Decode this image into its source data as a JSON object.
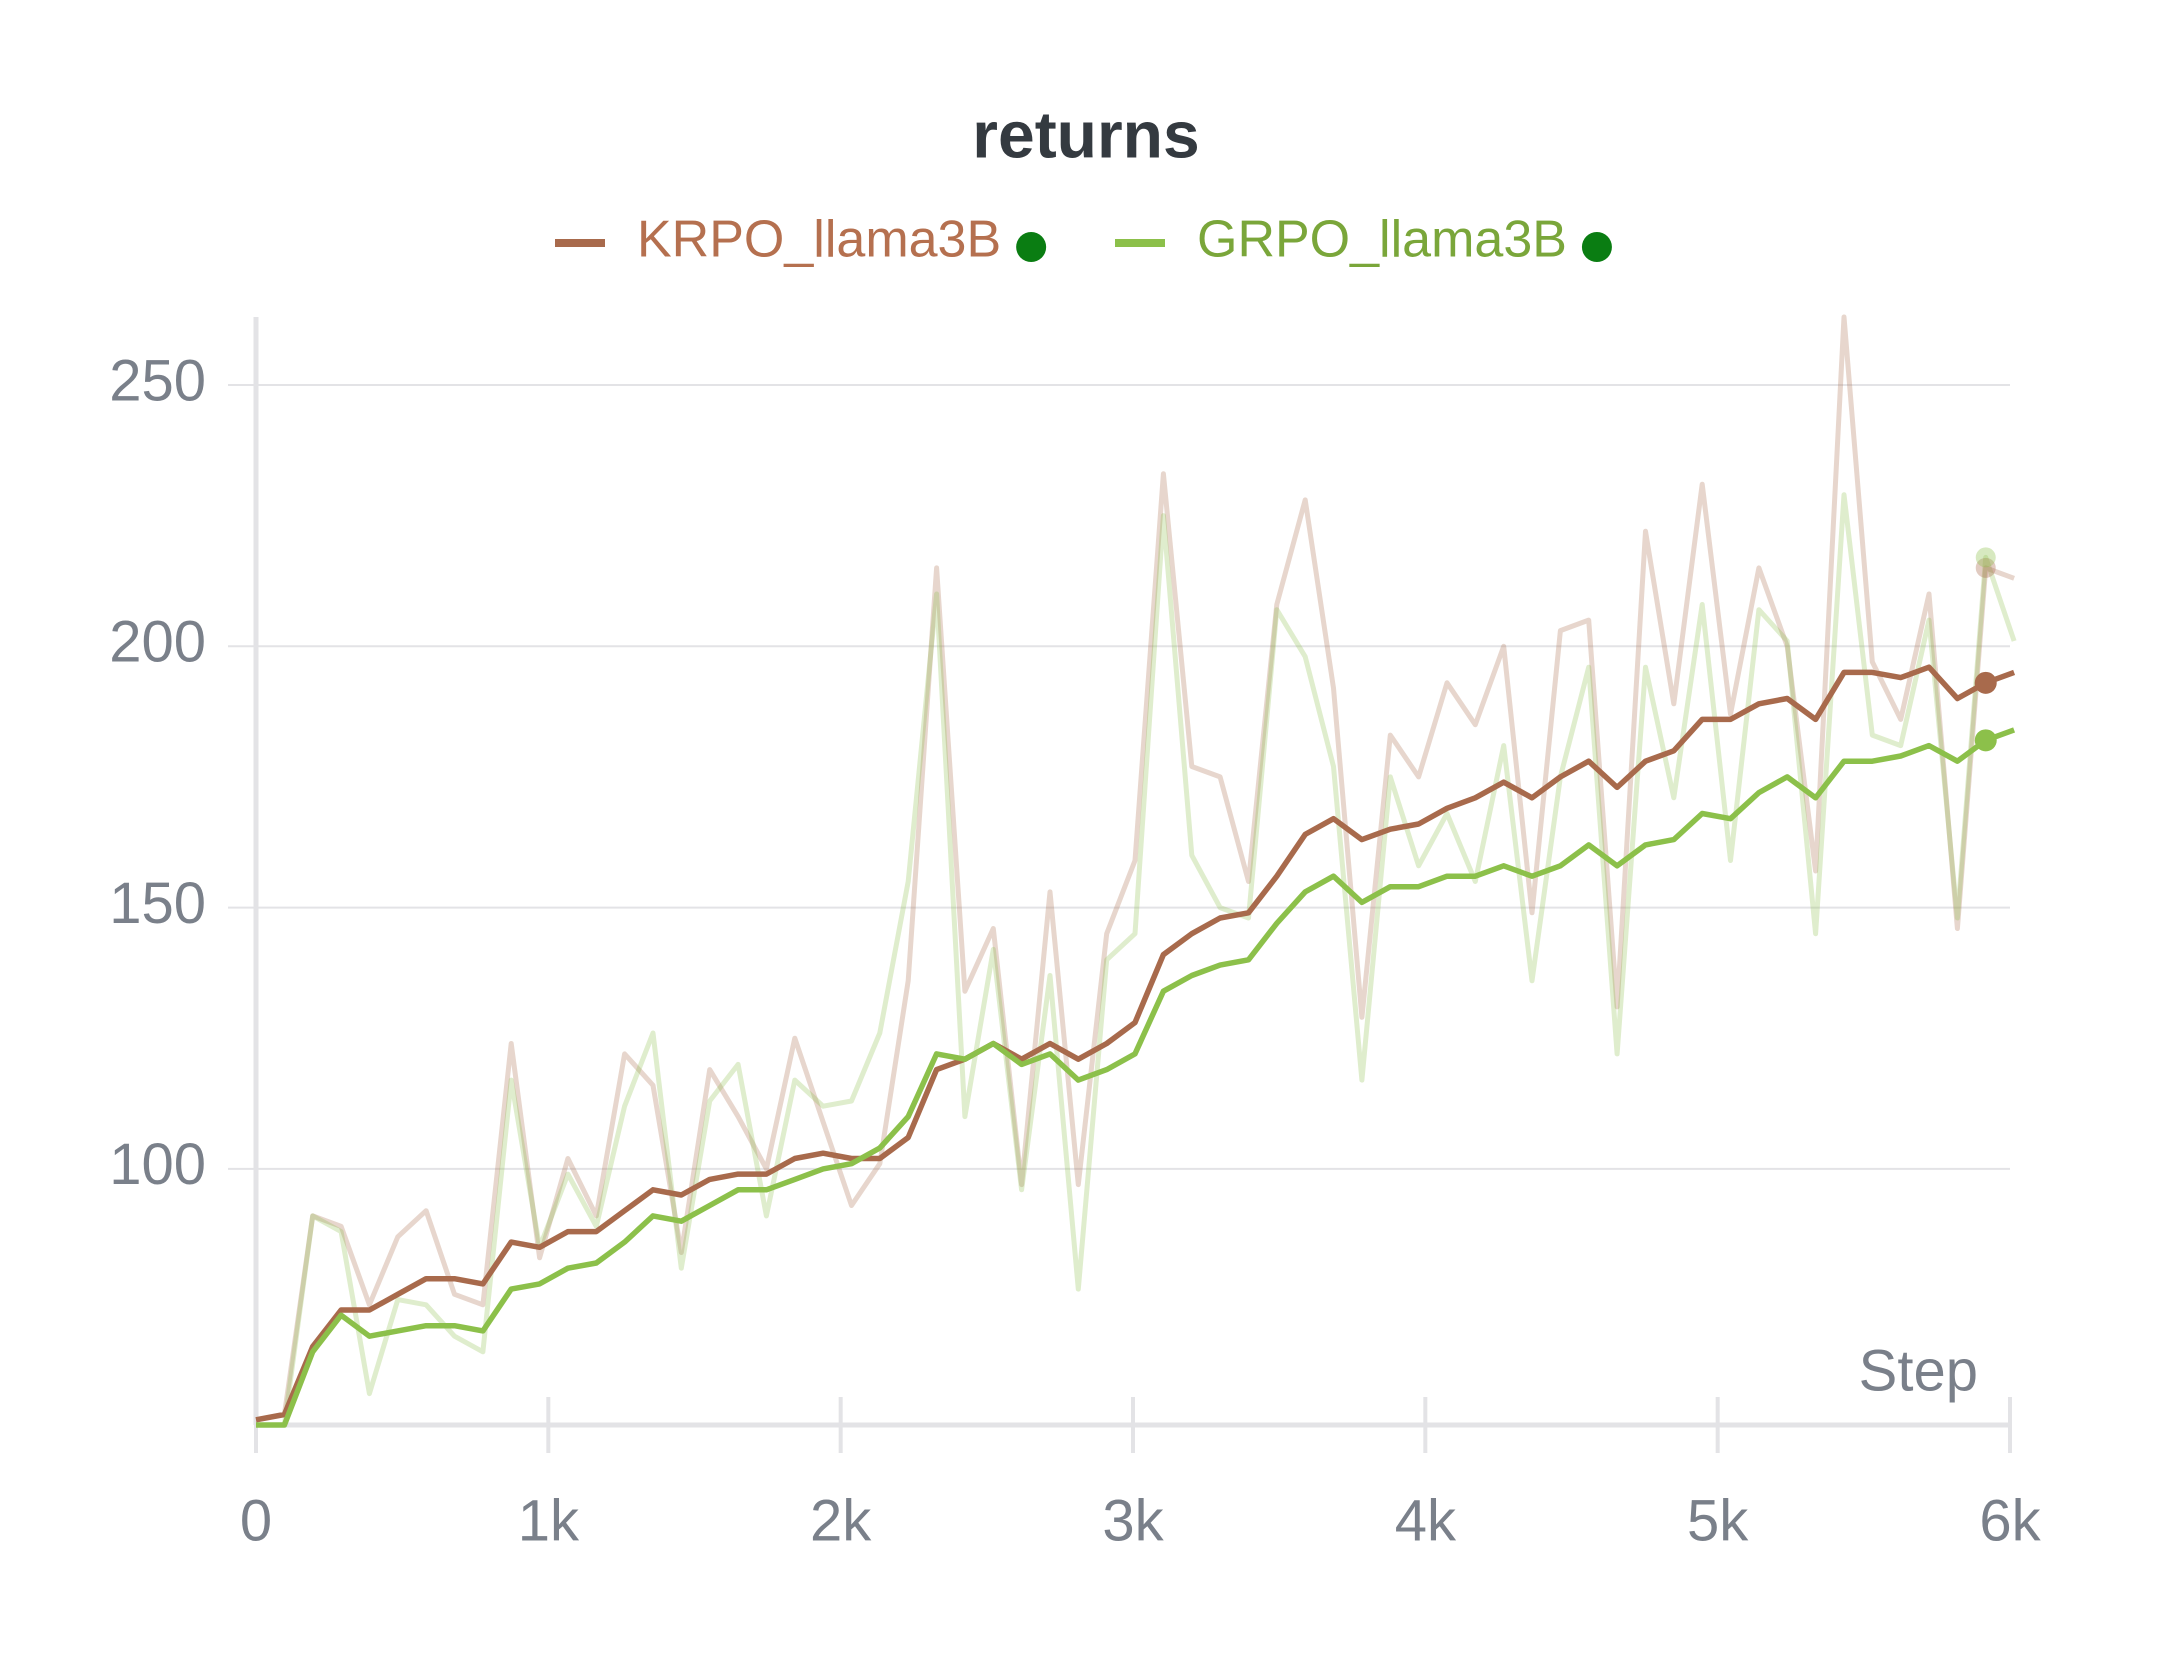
{
  "chart_data": {
    "type": "line",
    "title": "returns",
    "x_label": "Step",
    "x": [
      0,
      97,
      194,
      291,
      388,
      485,
      582,
      679,
      776,
      873,
      970,
      1067,
      1164,
      1261,
      1358,
      1455,
      1552,
      1649,
      1746,
      1843,
      1940,
      2037,
      2134,
      2231,
      2328,
      2425,
      2522,
      2619,
      2716,
      2813,
      2910,
      3007,
      3104,
      3201,
      3298,
      3395,
      3492,
      3589,
      3686,
      3783,
      3880,
      3977,
      4074,
      4171,
      4268,
      4365,
      4462,
      4559,
      4656,
      4753,
      4850,
      4947,
      5044,
      5141,
      5238,
      5335,
      5432,
      5529,
      5626,
      5723,
      5820,
      5917,
      6014
    ],
    "series": [
      {
        "name": "KRPO_llama3B",
        "color": "#a86a4c",
        "label_color": "#b5704f",
        "marker_color": "#0a7d12",
        "values": [
          52,
          53,
          66,
          73,
          73,
          76,
          79,
          79,
          78,
          86,
          85,
          88,
          88,
          92,
          96,
          95,
          98,
          99,
          99,
          102,
          103,
          102,
          102,
          106,
          119,
          121,
          124,
          121,
          124,
          121,
          124,
          128,
          141,
          145,
          148,
          149,
          156,
          164,
          167,
          163,
          165,
          166,
          169,
          171,
          174,
          171,
          175,
          178,
          173,
          178,
          180,
          186,
          186,
          189,
          190,
          186,
          195,
          195,
          194,
          196,
          190,
          193,
          195
        ],
        "raw": [
          52,
          53,
          91,
          89,
          74,
          87,
          92,
          76,
          74,
          124,
          83,
          102,
          91,
          122,
          116,
          84,
          119,
          110,
          100,
          125,
          109,
          93,
          101,
          136,
          215,
          134,
          146,
          97,
          153,
          97,
          145,
          159,
          233,
          177,
          175,
          155,
          208,
          228,
          192,
          129,
          183,
          175,
          193,
          185,
          200,
          149,
          203,
          205,
          131,
          222,
          189,
          231,
          187,
          215,
          200,
          157,
          263,
          197,
          186,
          210,
          146,
          215,
          213
        ]
      },
      {
        "name": "GRPO_llama3B",
        "color": "#8cc04a",
        "label_color": "#7aa63a",
        "marker_color": "#0a7d12",
        "values": [
          51,
          51,
          65,
          72,
          68,
          69,
          70,
          70,
          69,
          77,
          78,
          81,
          82,
          86,
          91,
          90,
          93,
          96,
          96,
          98,
          100,
          101,
          104,
          110,
          122,
          121,
          124,
          120,
          122,
          117,
          119,
          122,
          134,
          137,
          139,
          140,
          147,
          153,
          156,
          151,
          154,
          154,
          156,
          156,
          158,
          156,
          158,
          162,
          158,
          162,
          163,
          168,
          167,
          172,
          175,
          171,
          178,
          178,
          179,
          181,
          178,
          182,
          184
        ],
        "raw": [
          51,
          51,
          91,
          88,
          57,
          75,
          74,
          68,
          65,
          117,
          85,
          99,
          89,
          112,
          126,
          81,
          113,
          120,
          91,
          117,
          112,
          113,
          126,
          155,
          210,
          110,
          142,
          96,
          137,
          77,
          140,
          145,
          225,
          160,
          150,
          148,
          207,
          198,
          177,
          117,
          175,
          158,
          168,
          155,
          181,
          136,
          175,
          196,
          122,
          196,
          171,
          208,
          159,
          207,
          201,
          145,
          229,
          183,
          181,
          205,
          148,
          217,
          201
        ]
      }
    ],
    "xlim": [
      0,
      6000
    ],
    "ylim": [
      51,
      263
    ],
    "xticks": [
      0,
      {
        "value": 1000,
        "label": "1k"
      },
      {
        "value": 2000,
        "label": "2k"
      },
      {
        "value": 3000,
        "label": "3k"
      },
      {
        "value": 4000,
        "label": "4k"
      },
      {
        "value": 5000,
        "label": "5k"
      },
      {
        "value": 6000,
        "label": "6k"
      }
    ],
    "yticks": [
      100,
      150,
      200,
      250
    ],
    "grid": true
  }
}
